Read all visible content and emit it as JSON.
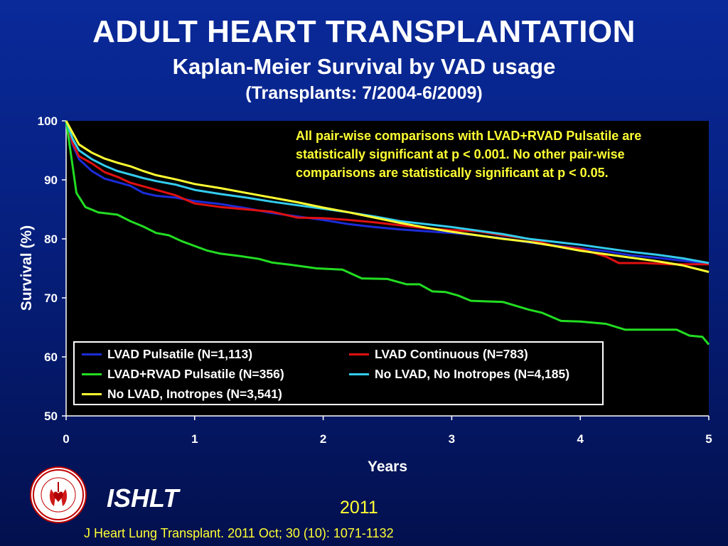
{
  "header": {
    "title": "ADULT HEART TRANSPLANTATION",
    "subtitle": "Kaplan-Meier Survival by VAD usage",
    "subtitle2": "(Transplants: 7/2004-6/2009)"
  },
  "annotation": {
    "line1": "All pair-wise comparisons with LVAD+RVAD Pulsatile are",
    "line2": "statistically significant at p < 0.001. No other pair-wise",
    "line3": "comparisons are statistically significant at p < 0.05."
  },
  "footer": {
    "brand": "ISHLT",
    "year": "2011",
    "citation": "J Heart Lung Transplant. 2011 Oct; 30 (10): 1071-1132",
    "logo_text": "INTERNATIONAL SOCIETY FOR HEART & LUNG TRANSPLANTATION"
  },
  "colors": {
    "background": "#062080",
    "plot_background": "#000000",
    "annotation_text": "#ffff33"
  },
  "chart_data": {
    "type": "line",
    "xlabel": "Years",
    "ylabel": "Survival (%)",
    "xlim": [
      0,
      5
    ],
    "ylim": [
      50,
      100
    ],
    "xticks": [
      "0",
      "1",
      "2",
      "3",
      "4",
      "5"
    ],
    "yticks": [
      "50",
      "60",
      "70",
      "80",
      "90",
      "100"
    ],
    "grid": false,
    "legend_position": "bottom-left",
    "series": [
      {
        "name": "LVAD Pulsatile (N=1,113)",
        "color": "#1c2cd8",
        "x": [
          0,
          0.05,
          0.1,
          0.2,
          0.3,
          0.4,
          0.5,
          0.6,
          0.7,
          0.85,
          1.0,
          1.2,
          1.4,
          1.6,
          1.8,
          2.0,
          2.2,
          2.4,
          2.6,
          2.8,
          3.0,
          3.2,
          3.4,
          3.6,
          3.8,
          4.0,
          4.2,
          4.4,
          4.6,
          4.8,
          5.0
        ],
        "y": [
          100,
          96,
          93.5,
          91.5,
          90.2,
          89.6,
          89.0,
          87.8,
          87.3,
          87.0,
          86.4,
          85.9,
          85.2,
          84.4,
          83.8,
          83.2,
          82.5,
          82.0,
          81.6,
          81.3,
          81.0,
          80.6,
          80.1,
          79.4,
          78.9,
          78.4,
          77.9,
          77.2,
          76.8,
          76.3,
          75.8
        ]
      },
      {
        "name": "LVAD Continuous (N=783)",
        "color": "#e01010",
        "x": [
          0,
          0.05,
          0.1,
          0.2,
          0.3,
          0.4,
          0.5,
          0.6,
          0.7,
          0.85,
          1.0,
          1.2,
          1.4,
          1.6,
          1.8,
          2.0,
          2.2,
          2.4,
          2.6,
          2.8,
          3.0,
          3.2,
          3.4,
          3.6,
          3.8,
          4.0,
          4.2,
          4.3,
          4.5,
          4.7,
          4.9,
          5.0
        ],
        "y": [
          100,
          96.3,
          94.0,
          92.8,
          91.3,
          90.5,
          89.5,
          88.9,
          88.3,
          87.4,
          86.0,
          85.4,
          85.0,
          84.6,
          83.6,
          83.5,
          83.2,
          82.8,
          82.3,
          81.8,
          81.5,
          81.3,
          80.6,
          80.0,
          78.8,
          78.3,
          77.0,
          75.9,
          75.9,
          75.7,
          75.7,
          75.7
        ]
      },
      {
        "name": "LVAD+RVAD Pulsatile (N=356)",
        "color": "#22dd22",
        "x": [
          0,
          0.04,
          0.08,
          0.15,
          0.25,
          0.4,
          0.5,
          0.6,
          0.7,
          0.8,
          0.9,
          1.0,
          1.1,
          1.2,
          1.35,
          1.5,
          1.6,
          1.75,
          1.85,
          1.95,
          2.15,
          2.3,
          2.5,
          2.65,
          2.75,
          2.85,
          2.95,
          3.05,
          3.15,
          3.4,
          3.6,
          3.7,
          3.85,
          4.0,
          4.2,
          4.35,
          4.5,
          4.75,
          4.85,
          4.95,
          5.0
        ],
        "y": [
          100,
          94,
          87.8,
          85.4,
          84.5,
          84.1,
          83.0,
          82.1,
          81.0,
          80.6,
          79.6,
          78.8,
          78.0,
          77.5,
          77.1,
          76.6,
          76.0,
          75.6,
          75.3,
          75.0,
          74.8,
          73.3,
          73.2,
          72.3,
          72.3,
          71.1,
          71.0,
          70.4,
          69.5,
          69.3,
          68.0,
          67.5,
          66.1,
          66.0,
          65.6,
          64.6,
          64.6,
          64.6,
          63.6,
          63.4,
          62.1
        ]
      },
      {
        "name": "No LVAD, No Inotropes (N=4,185)",
        "color": "#33ccee",
        "x": [
          0,
          0.05,
          0.1,
          0.2,
          0.3,
          0.4,
          0.5,
          0.6,
          0.7,
          0.85,
          1.0,
          1.2,
          1.4,
          1.6,
          1.8,
          2.0,
          2.2,
          2.4,
          2.6,
          2.8,
          3.0,
          3.2,
          3.4,
          3.6,
          3.8,
          4.0,
          4.2,
          4.4,
          4.6,
          4.8,
          5.0
        ],
        "y": [
          100,
          97,
          95.0,
          93.5,
          92.4,
          91.5,
          90.9,
          90.3,
          89.8,
          89.2,
          88.3,
          87.6,
          87.0,
          86.3,
          85.7,
          85.1,
          84.5,
          83.8,
          83.0,
          82.5,
          82.0,
          81.4,
          80.8,
          80.0,
          79.5,
          79.0,
          78.4,
          77.8,
          77.3,
          76.7,
          75.9
        ]
      },
      {
        "name": "No LVAD, Inotropes (N=3,541)",
        "color": "#ffff33",
        "x": [
          0,
          0.05,
          0.1,
          0.2,
          0.3,
          0.4,
          0.5,
          0.6,
          0.7,
          0.85,
          1.0,
          1.2,
          1.4,
          1.6,
          1.8,
          2.0,
          2.2,
          2.4,
          2.6,
          2.8,
          3.0,
          3.2,
          3.4,
          3.6,
          3.8,
          4.0,
          4.2,
          4.4,
          4.6,
          4.8,
          5.0
        ],
        "y": [
          100,
          98,
          96.0,
          94.6,
          93.6,
          92.9,
          92.3,
          91.5,
          90.8,
          90.1,
          89.3,
          88.6,
          87.8,
          87.0,
          86.2,
          85.3,
          84.5,
          83.6,
          82.7,
          81.9,
          81.2,
          80.6,
          80.0,
          79.5,
          78.8,
          78.0,
          77.4,
          76.8,
          76.2,
          75.5,
          74.4
        ]
      }
    ]
  }
}
